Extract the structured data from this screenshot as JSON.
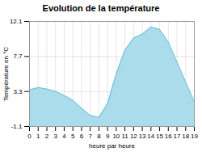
{
  "chart_data": {
    "type": "area",
    "title": "Evolution de la température",
    "xlabel": "heure par heure",
    "ylabel": "Température en °C",
    "x": [
      0,
      1,
      2,
      3,
      4,
      5,
      6,
      7,
      8,
      9,
      10,
      11,
      12,
      13,
      14,
      15,
      16,
      17,
      18,
      19
    ],
    "values": [
      3.5,
      3.8,
      3.6,
      3.3,
      2.8,
      2.2,
      1.2,
      0.3,
      0.05,
      1.8,
      5.5,
      8.5,
      10.0,
      10.5,
      11.4,
      11.1,
      9.5,
      7.0,
      4.5,
      2.0
    ],
    "color": "#aadcec",
    "xlim": [
      0,
      19
    ],
    "xticks": [
      0,
      1,
      2,
      3,
      4,
      5,
      6,
      7,
      8,
      9,
      10,
      11,
      12,
      13,
      14,
      15,
      16,
      17,
      18,
      19
    ],
    "ylim": [
      -1.1,
      12.1
    ],
    "yticks": [
      -1.1,
      3.3,
      7.7,
      12.1
    ],
    "grid": true
  }
}
